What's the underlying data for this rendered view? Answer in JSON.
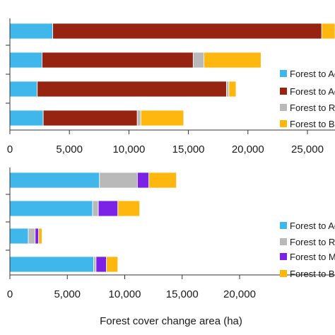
{
  "chart_data": [
    {
      "type": "bar",
      "orientation": "horizontal",
      "stacked": true,
      "xlim": [
        0,
        28000
      ],
      "ticks": [
        0,
        5000,
        10000,
        15000,
        20000,
        25000
      ],
      "tick_labels": [
        "0",
        "5,000",
        "10,000",
        "15,000",
        "20,000",
        "25,000"
      ],
      "series": [
        {
          "name": "Forest to Ag",
          "color": "#3fb7ea",
          "values": [
            3600,
            2700,
            2300,
            2800
          ]
        },
        {
          "name": "Forest to Ag",
          "color": "#972410",
          "values": [
            22600,
            12700,
            15900,
            7900
          ]
        },
        {
          "name": "Forest to Ra",
          "color": "#b9b9b9",
          "values": [
            0,
            900,
            200,
            300
          ]
        },
        {
          "name": "Forest to Ba",
          "color": "#fdb70f",
          "values": [
            1800,
            4800,
            600,
            3600
          ]
        }
      ],
      "legend": {
        "position": "right",
        "labels": [
          "Forest to Ag",
          "Forest to Ag",
          "Forest to Ra",
          "Forest to Ba"
        ]
      },
      "grid": false
    },
    {
      "type": "bar",
      "orientation": "horizontal",
      "stacked": true,
      "xlim": [
        0,
        20000
      ],
      "ticks": [
        0,
        5000,
        10000,
        15000,
        20000
      ],
      "tick_labels": [
        "0",
        "5,000",
        "10,000",
        "15,000",
        "20,000"
      ],
      "xlabel": "Forest cover change area (ha)",
      "series": [
        {
          "name": "Forest to Ag",
          "color": "#3fb7ea",
          "values": [
            7800,
            7200,
            1600,
            7300
          ]
        },
        {
          "name": "Forest to Ra",
          "color": "#b9b9b9",
          "values": [
            3300,
            500,
            600,
            200
          ]
        },
        {
          "name": "Forest to Me",
          "color": "#7b22e6",
          "values": [
            1000,
            1700,
            300,
            900
          ]
        },
        {
          "name": "Forest to Ba",
          "color": "#fdb70f",
          "values": [
            2400,
            1900,
            300,
            1000
          ]
        }
      ],
      "legend": {
        "position": "right",
        "labels": [
          "Forest to Ag",
          "Forest to Ra",
          "Forest to Me",
          "Forest to Ba"
        ]
      },
      "grid": false
    }
  ]
}
